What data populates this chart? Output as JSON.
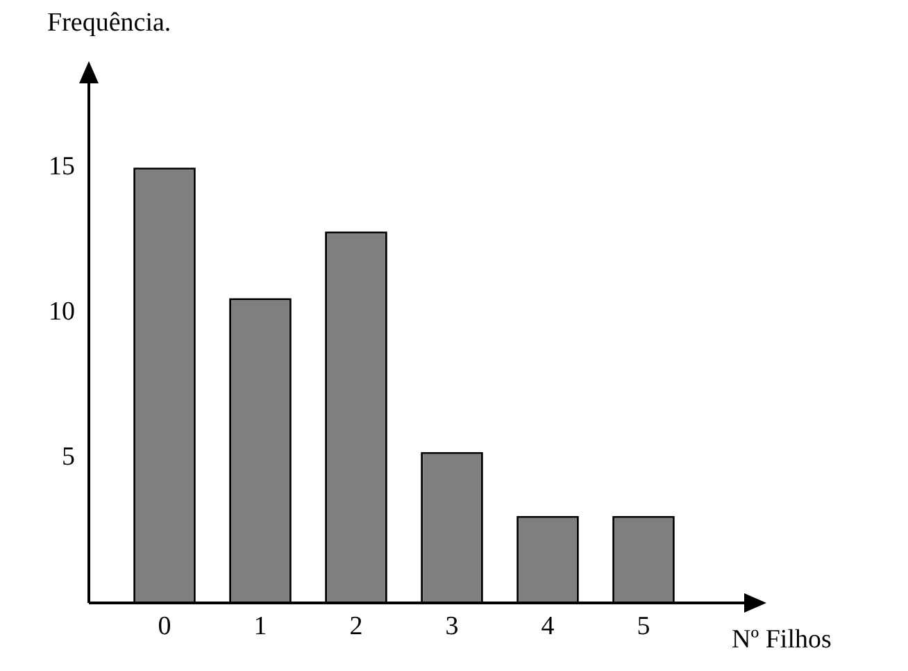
{
  "chart_data": {
    "type": "bar",
    "ylabel": "Frequência.",
    "xlabel": "Nº Filhos",
    "categories": [
      "0",
      "1",
      "2",
      "3",
      "4",
      "5"
    ],
    "values": [
      15,
      10.5,
      12.8,
      5.2,
      3,
      3
    ],
    "color": "#7f7f7f",
    "ylim": [
      0,
      18
    ],
    "yticks": [
      5,
      10,
      15
    ],
    "grid": false,
    "legend": false
  }
}
